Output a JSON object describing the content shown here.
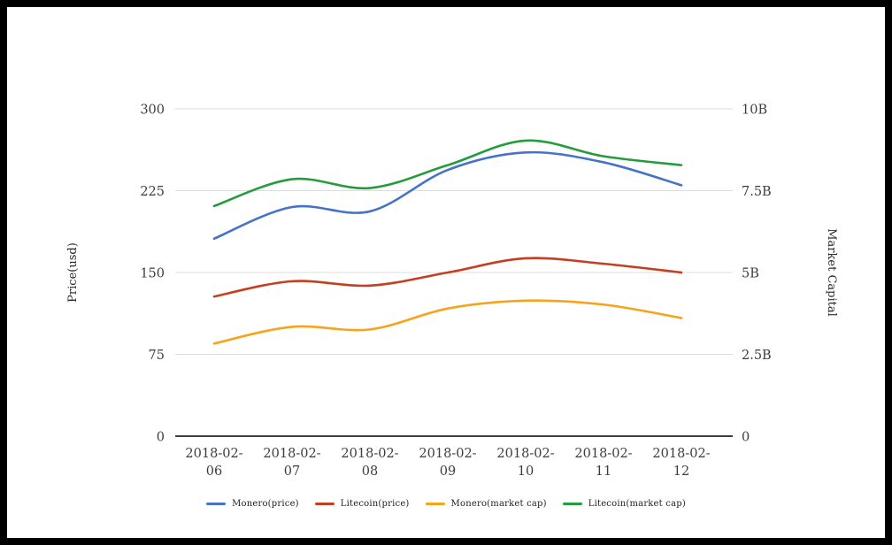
{
  "frame": {
    "background": "#ffffff",
    "border_color": "#000000"
  },
  "chart_data": {
    "type": "line",
    "smooth": true,
    "grid": true,
    "legend_position": "bottom",
    "x": [
      "2018-02-06",
      "2018-02-07",
      "2018-02-08",
      "2018-02-09",
      "2018-02-10",
      "2018-02-11",
      "2018-02-12"
    ],
    "series": [
      {
        "name": "Monero(price)",
        "axis": "left",
        "color": "#4673c8",
        "values": [
          181,
          210,
          206,
          244,
          260,
          251,
          230
        ]
      },
      {
        "name": "Litecoin(price)",
        "axis": "left",
        "color": "#c63e20",
        "values": [
          128,
          142,
          138,
          150,
          163,
          158,
          150
        ]
      },
      {
        "name": "Monero(market cap)",
        "axis": "right",
        "color": "#f7a31c",
        "values": [
          2.83,
          3.34,
          3.26,
          3.9,
          4.14,
          4.02,
          3.61
        ]
      },
      {
        "name": "Litecoin(market cap)",
        "axis": "right",
        "color": "#239c3b",
        "values": [
          7.03,
          7.85,
          7.58,
          8.28,
          9.03,
          8.55,
          8.28
        ]
      }
    ],
    "left_axis": {
      "title": "Price(usd)",
      "range": [
        0,
        300
      ],
      "ticks": [
        0,
        75,
        150,
        225,
        300
      ],
      "tick_labels": [
        "0",
        "75",
        "150",
        "225",
        "300"
      ]
    },
    "right_axis": {
      "title": "Market Capital",
      "unit": "billions",
      "range": [
        0,
        10
      ],
      "ticks": [
        0,
        2.5,
        5,
        7.5,
        10
      ],
      "tick_labels": [
        "0",
        "2.5B",
        "5B",
        "7.5B",
        "10B"
      ]
    },
    "colors": {
      "grid_line": "#dcdcdc",
      "axis_line": "#222222",
      "tick_text": "#3d3d3d"
    }
  }
}
